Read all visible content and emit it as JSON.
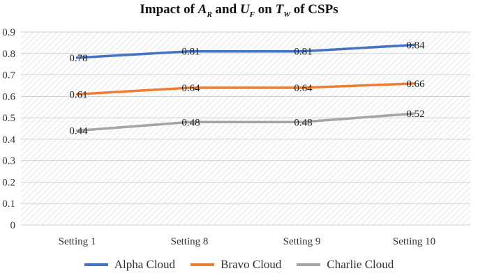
{
  "chart_data": {
    "type": "line",
    "title": {
      "prefix": "Impact of ",
      "var1": "A",
      "sub1": "R",
      "mid1": " and ",
      "var2": "U",
      "sub2": "F",
      "mid2": " on ",
      "var3": "T",
      "sub3": "W",
      "suffix": " of CSPs"
    },
    "xlabel": "",
    "ylabel": "",
    "ylim": [
      0,
      0.9
    ],
    "yticks": [
      "0",
      "0.1",
      "0.2",
      "0.3",
      "0.4",
      "0.5",
      "0.6",
      "0.7",
      "0.8",
      "0.9"
    ],
    "categories": [
      "Setting 1",
      "Setting 8",
      "Setting 9",
      "Setting 10"
    ],
    "grid": true,
    "legend_position": "bottom",
    "series": [
      {
        "name": "Alpha Cloud",
        "color": "#4472C4",
        "values": [
          0.78,
          0.81,
          0.81,
          0.84
        ],
        "labels": [
          "0.78",
          "0.81",
          "0.81",
          "0.84"
        ]
      },
      {
        "name": "Bravo Cloud",
        "color": "#ED7D31",
        "values": [
          0.61,
          0.64,
          0.64,
          0.66
        ],
        "labels": [
          "0.61",
          "0.64",
          "0.64",
          "0.66"
        ]
      },
      {
        "name": "Charlie Cloud",
        "color": "#A5A5A5",
        "values": [
          0.44,
          0.48,
          0.48,
          0.52
        ],
        "labels": [
          "0.44",
          "0.48",
          "0.48",
          "0.52"
        ]
      }
    ]
  }
}
